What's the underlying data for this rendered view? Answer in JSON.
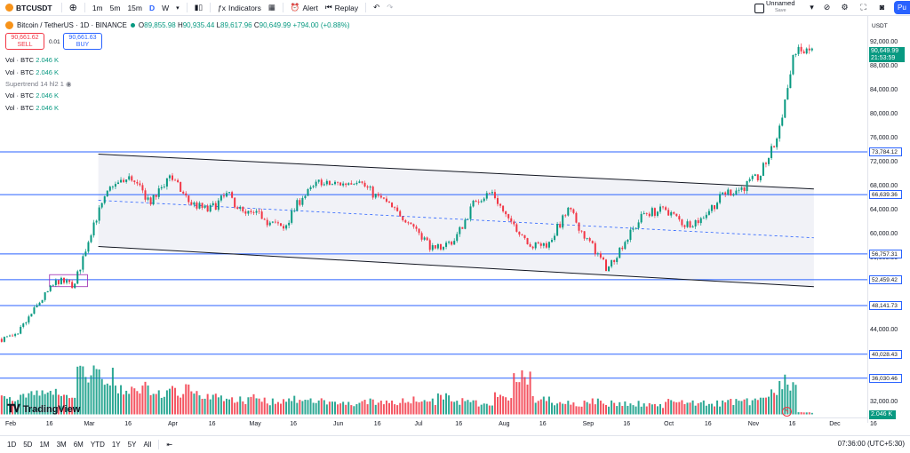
{
  "topbar": {
    "symbol": "BTCUSDT",
    "timeframes": [
      "1m",
      "5m",
      "15m",
      "D",
      "W"
    ],
    "active_timeframe": "D",
    "indicators_label": "Indicators",
    "alert_label": "Alert",
    "replay_label": "Replay",
    "layout_name": "Unnamed",
    "layout_status": "Save",
    "publish_label": "Pu"
  },
  "header": {
    "title": "Bitcoin / TetherUS · 1D · BINANCE",
    "open_label": "O",
    "open": "89,855.98",
    "high_label": "H",
    "high": "90,935.44",
    "low_label": "L",
    "low": "89,617.96",
    "close_label": "C",
    "close": "90,649.99",
    "change": "+794.00 (+0.88%)"
  },
  "trade": {
    "sell_price": "90,661.62",
    "sell_label": "SELL",
    "spread": "0.01",
    "buy_price": "90,661.63",
    "buy_label": "BUY"
  },
  "legends": [
    {
      "label": "Vol · BTC",
      "value": "2.046 K"
    },
    {
      "label": "Vol · BTC",
      "value": "2.046 K"
    },
    {
      "label": "Supertrend 14 hl2 1",
      "value": ""
    },
    {
      "label": "Vol · BTC",
      "value": "2.046 K"
    },
    {
      "label": "Vol · BTC",
      "value": "2.046 K"
    }
  ],
  "price_axis": {
    "currency": "USDT",
    "labels": [
      "92,000.00",
      "88,000.00",
      "84,000.00",
      "80,000.00",
      "76,000.00",
      "72,000.00",
      "68,000.00",
      "64,000.00",
      "60,000.00",
      "56,000.00",
      "52,000.00",
      "48,000.00",
      "44,000.00",
      "40,000.00",
      "36,000.00",
      "32,000.00"
    ],
    "levels": [
      "73,784.12",
      "66,639.36",
      "56,757.31",
      "52,459.42",
      "48,141.73",
      "40,028.43",
      "36,030.46"
    ],
    "current_price": "90,649.99",
    "countdown": "21:53:59",
    "volume_badge": "2.046 K"
  },
  "time_axis": [
    "Feb",
    "16",
    "Mar",
    "16",
    "Apr",
    "16",
    "May",
    "16",
    "Jun",
    "16",
    "Jul",
    "16",
    "Aug",
    "16",
    "Sep",
    "16",
    "Oct",
    "16",
    "Nov",
    "16",
    "Dec",
    "16"
  ],
  "bottombar": {
    "ranges": [
      "1D",
      "5D",
      "1M",
      "3M",
      "6M",
      "YTD",
      "1Y",
      "5Y",
      "All"
    ],
    "clock": "07:36:00 (UTC+5:30)"
  },
  "branding": {
    "logo_text": "TradingView"
  },
  "colors": {
    "up": "#089981",
    "down": "#f23645",
    "level": "#2962ff",
    "accent": "#2962ff"
  },
  "chart_data": {
    "type": "candlestick",
    "symbol": "BTCUSDT",
    "interval": "1D",
    "price_range": [
      30000,
      94000
    ],
    "horizontal_levels": [
      73784.12,
      66639.36,
      56757.31,
      52459.42,
      48141.73,
      40028.43,
      36030.46
    ],
    "channel": {
      "upper": [
        {
          "date": "Mar 5",
          "price": 73400
        },
        {
          "date": "Nov 24",
          "price": 67600
        }
      ],
      "lower": [
        {
          "date": "Mar 5",
          "price": 58000
        },
        {
          "date": "Nov 24",
          "price": 51300
        }
      ]
    },
    "weekly_closes": {
      "dates": [
        "Jan 29",
        "Feb 5",
        "Feb 12",
        "Feb 19",
        "Feb 26",
        "Mar 4",
        "Mar 11",
        "Mar 18",
        "Mar 25",
        "Apr 1",
        "Apr 8",
        "Apr 15",
        "Apr 22",
        "Apr 29",
        "May 6",
        "May 13",
        "May 20",
        "May 27",
        "Jun 3",
        "Jun 10",
        "Jun 17",
        "Jun 24",
        "Jul 1",
        "Jul 8",
        "Jul 15",
        "Jul 22",
        "Jul 29",
        "Aug 5",
        "Aug 12",
        "Aug 19",
        "Aug 26",
        "Sep 2",
        "Sep 9",
        "Sep 16",
        "Sep 23",
        "Sep 30",
        "Oct 7",
        "Oct 14",
        "Oct 21",
        "Oct 28",
        "Nov 4",
        "Nov 11",
        "Nov 18"
      ],
      "close": [
        43000,
        48000,
        52000,
        51500,
        62000,
        68500,
        69500,
        65500,
        70000,
        65500,
        64000,
        66500,
        63000,
        63000,
        61000,
        66500,
        69000,
        68500,
        69500,
        66000,
        63500,
        61000,
        57000,
        59000,
        65000,
        67000,
        61500,
        58500,
        58500,
        64000,
        59000,
        54500,
        59000,
        63500,
        64000,
        62000,
        62500,
        66000,
        67500,
        69500,
        76000,
        91000,
        90650
      ],
      "volume_k": [
        20,
        24,
        26,
        18,
        45,
        40,
        30,
        28,
        22,
        26,
        22,
        18,
        16,
        18,
        14,
        16,
        14,
        14,
        12,
        14,
        12,
        16,
        14,
        18,
        14,
        12,
        20,
        38,
        16,
        14,
        12,
        14,
        12,
        12,
        10,
        14,
        12,
        12,
        14,
        14,
        26,
        34,
        2.046
      ]
    }
  }
}
